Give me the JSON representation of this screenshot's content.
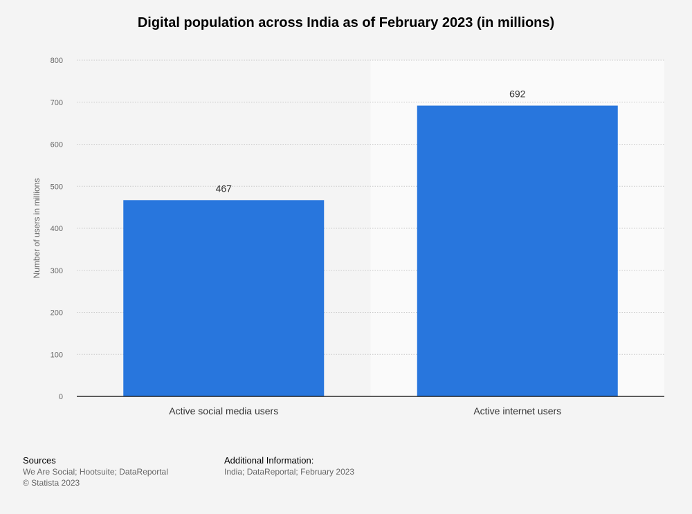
{
  "chart_data": {
    "type": "bar",
    "title": "Digital population across India as of February 2023 (in millions)",
    "xlabel": "",
    "ylabel": "Number of users in millions",
    "categories": [
      "Active social media users",
      "Active internet users"
    ],
    "values": [
      467,
      692
    ],
    "value_labels": [
      "467",
      "692"
    ],
    "ylim": [
      0,
      800
    ],
    "yticks": [
      0,
      100,
      200,
      300,
      400,
      500,
      600,
      700,
      800
    ],
    "ytick_labels": [
      "0",
      "100",
      "200",
      "300",
      "400",
      "500",
      "600",
      "700",
      "800"
    ],
    "grid": true,
    "highlight_category_index": 1,
    "colors": {
      "bar": "#2876dd",
      "highlight_band": "#fafafa",
      "grid": "#c8c8c8",
      "axis": "#000000",
      "tick_text": "#666666",
      "label_text": "#333333"
    }
  },
  "footer": {
    "sources_heading": "Sources",
    "sources_text": "We Are Social; Hootsuite; DataReportal",
    "copyright": "© Statista 2023",
    "additional_heading": "Additional Information:",
    "additional_text": "India; DataReportal; February 2023"
  }
}
